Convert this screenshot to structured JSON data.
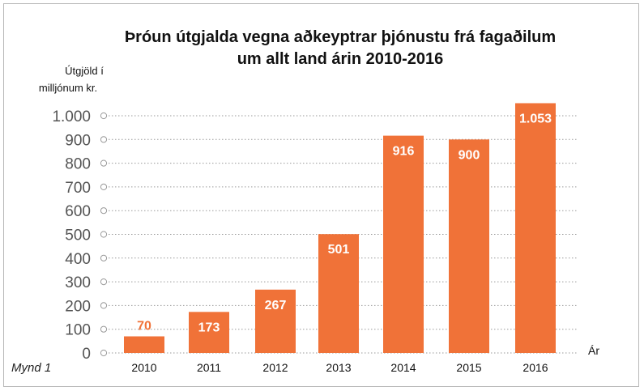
{
  "chart_data": {
    "type": "bar",
    "title_line1": "Þróun útgjalda vegna aðkeyptrar þjónustu frá fagaðilum",
    "title_line2": "um allt land árin 2010-2016",
    "ylabel_line1": "Útgjöld í",
    "ylabel_line2": "milljónum kr.",
    "xlabel": "Ár",
    "categories": [
      "2010",
      "2011",
      "2012",
      "2013",
      "2014",
      "2015",
      "2016"
    ],
    "values": [
      70,
      173,
      267,
      501,
      916,
      900,
      1053
    ],
    "value_labels": [
      "70",
      "173",
      "267",
      "501",
      "916",
      "900",
      "1.053"
    ],
    "ylim": [
      0,
      1000
    ],
    "yticks": [
      0,
      100,
      200,
      300,
      400,
      500,
      600,
      700,
      800,
      900,
      1000
    ],
    "ytick_labels": [
      "0",
      "100",
      "200",
      "300",
      "400",
      "500",
      "600",
      "700",
      "800",
      "900",
      "1.000"
    ],
    "grid": true,
    "colors": {
      "bar": "#f07238",
      "label_outside": "#f07238",
      "label_inside": "#ffffff",
      "grid": "#9a9a9a"
    }
  },
  "caption": "Mynd 1"
}
